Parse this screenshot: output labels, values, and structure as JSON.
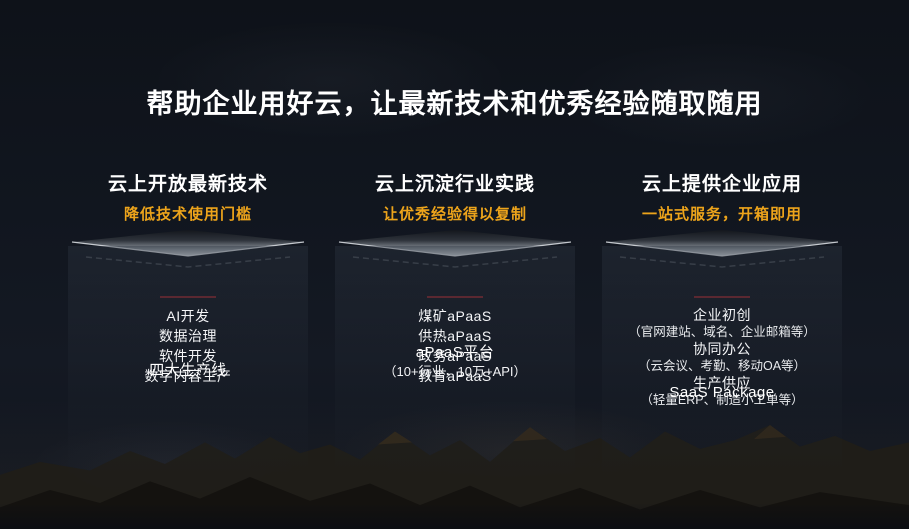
{
  "slide": {
    "title": "帮助企业用好云，让最新技术和优秀经验随取随用"
  },
  "colors": {
    "accent_gold": "#eda41b",
    "divider_red": "#5b2831"
  },
  "columns": [
    {
      "header": "云上开放最新技术",
      "subtitle": "降低技术使用门槛",
      "body_title": "四大生产线",
      "items": [
        {
          "text": "AI开发"
        },
        {
          "text": "数据治理"
        },
        {
          "text": "软件开发"
        },
        {
          "text": "数字内容生产"
        }
      ]
    },
    {
      "header": "云上沉淀行业实践",
      "subtitle": "让优秀经验得以复制",
      "body_title": "aPaaS平台",
      "body_subtitle": "（10+行业，10万+API）",
      "items": [
        {
          "text": "煤矿aPaaS"
        },
        {
          "text": "供热aPaaS"
        },
        {
          "text": "政务aPaaS"
        },
        {
          "text": "教育aPaaS"
        }
      ]
    },
    {
      "header": "云上提供企业应用",
      "subtitle": "一站式服务，开箱即用",
      "body_title": "SaaS Package",
      "items": [
        {
          "text": "企业初创"
        },
        {
          "text": "（官网建站、域名、企业邮箱等）",
          "small": true
        },
        {
          "text": "协同办公"
        },
        {
          "text": "（云会议、考勤、移动OA等）",
          "small": true
        },
        {
          "text": "生产供应"
        },
        {
          "text": "（轻量ERP、制造小工单等）",
          "small": true
        }
      ]
    }
  ]
}
